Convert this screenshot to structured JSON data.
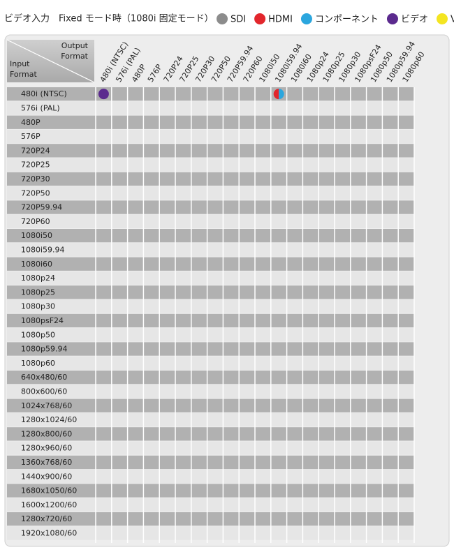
{
  "title": "ビデオ入力　Fixed モード時（1080i 固定モード）",
  "legend": [
    {
      "label": "SDI",
      "color": "#8c8c8c"
    },
    {
      "label": "HDMI",
      "color": "#e2262c"
    },
    {
      "label": "コンポーネント",
      "color": "#2ba6de"
    },
    {
      "label": "ビデオ",
      "color": "#5b2a8e"
    },
    {
      "label": "VGA",
      "color": "#f4e521"
    }
  ],
  "corner": {
    "output": "Output Format",
    "input": "Input Format"
  },
  "columns": [
    "480i (NTSC)",
    "576i (PAL)",
    "480P",
    "576P",
    "720P24",
    "720P25",
    "720P30",
    "720P50",
    "720P59.94",
    "720P60",
    "1080i50",
    "1080i59.94",
    "1080i60",
    "1080p24",
    "1080p25",
    "1080p30",
    "1080psF24",
    "1080p50",
    "1080p59.94",
    "1080p60"
  ],
  "rows": [
    {
      "label": "480i (NTSC)",
      "marks": [
        {
          "column": "480i (NTSC)",
          "inputs": [
            "ビデオ"
          ]
        },
        {
          "column": "1080i59.94",
          "inputs": [
            "HDMI",
            "コンポーネント"
          ]
        }
      ]
    },
    {
      "label": "576i (PAL)"
    },
    {
      "label": "480P"
    },
    {
      "label": "576P"
    },
    {
      "label": "720P24"
    },
    {
      "label": "720P25"
    },
    {
      "label": "720P30"
    },
    {
      "label": "720P50"
    },
    {
      "label": "720P59.94"
    },
    {
      "label": "720P60"
    },
    {
      "label": "1080i50"
    },
    {
      "label": "1080i59.94"
    },
    {
      "label": "1080i60"
    },
    {
      "label": "1080p24"
    },
    {
      "label": "1080p25"
    },
    {
      "label": "1080p30"
    },
    {
      "label": "1080psF24"
    },
    {
      "label": "1080p50"
    },
    {
      "label": "1080p59.94"
    },
    {
      "label": "1080p60"
    },
    {
      "label": "640x480/60"
    },
    {
      "label": "800x600/60"
    },
    {
      "label": "1024x768/60"
    },
    {
      "label": "1280x1024/60"
    },
    {
      "label": "1280x800/60"
    },
    {
      "label": "1280x960/60"
    },
    {
      "label": "1360x768/60"
    },
    {
      "label": "1440x900/60"
    },
    {
      "label": "1680x1050/60"
    },
    {
      "label": "1600x1200/60"
    },
    {
      "label": "1280x720/60"
    },
    {
      "label": "1920x1080/60"
    }
  ]
}
